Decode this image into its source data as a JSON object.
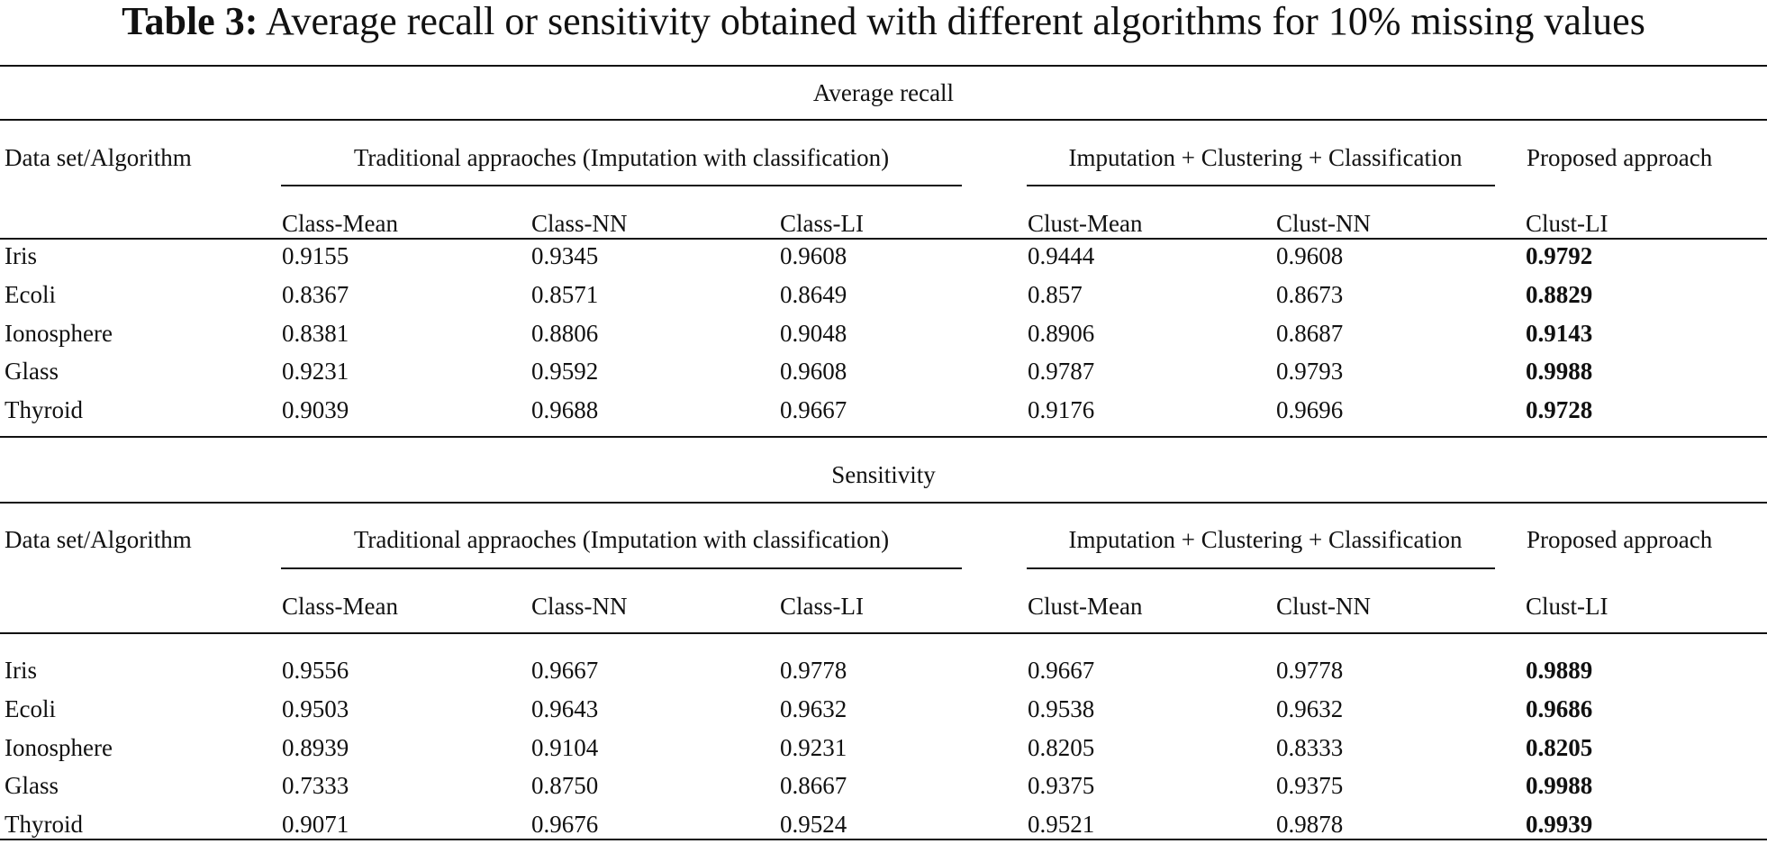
{
  "title": {
    "label": "Table 3:",
    "text": "Average recall or sensitivity obtained with different algorithms for 10% missing values"
  },
  "sections": [
    {
      "name": "Average recall",
      "header": {
        "corner": "Data set/Algorithm",
        "group_traditional": "Traditional appraoches (Imputation with classification)",
        "group_clustering": "Imputation + Clustering + Classification",
        "group_proposed": "Proposed approach"
      },
      "columns": [
        "Class-Mean",
        "Class-NN",
        "Class-LI",
        "Clust-Mean",
        "Clust-NN",
        "Clust-LI"
      ],
      "rows": [
        {
          "dataset": "Iris",
          "values": [
            "0.9155",
            "0.9345",
            "0.9608",
            "0.9444",
            "0.9608",
            "0.9792"
          ]
        },
        {
          "dataset": "Ecoli",
          "values": [
            "0.8367",
            "0.8571",
            "0.8649",
            "0.857",
            "0.8673",
            "0.8829"
          ]
        },
        {
          "dataset": "Ionosphere",
          "values": [
            "0.8381",
            "0.8806",
            "0.9048",
            "0.8906",
            "0.8687",
            "0.9143"
          ]
        },
        {
          "dataset": "Glass",
          "values": [
            "0.9231",
            "0.9592",
            "0.9608",
            "0.9787",
            "0.9793",
            "0.9988"
          ]
        },
        {
          "dataset": "Thyroid",
          "values": [
            "0.9039",
            "0.9688",
            "0.9667",
            "0.9176",
            "0.9696",
            "0.9728"
          ]
        }
      ]
    },
    {
      "name": "Sensitivity",
      "header": {
        "corner": "Data set/Algorithm",
        "group_traditional": "Traditional appraoches (Imputation with classification)",
        "group_clustering": "Imputation + Clustering + Classification",
        "group_proposed": "Proposed approach"
      },
      "columns": [
        "Class-Mean",
        "Class-NN",
        "Class-LI",
        "Clust-Mean",
        "Clust-NN",
        "Clust-LI"
      ],
      "rows": [
        {
          "dataset": "Iris",
          "values": [
            "0.9556",
            "0.9667",
            "0.9778",
            "0.9667",
            "0.9778",
            "0.9889"
          ]
        },
        {
          "dataset": "Ecoli",
          "values": [
            "0.9503",
            "0.9643",
            "0.9632",
            "0.9538",
            "0.9632",
            "0.9686"
          ]
        },
        {
          "dataset": "Ionosphere",
          "values": [
            "0.8939",
            "0.9104",
            "0.9231",
            "0.8205",
            "0.8333",
            "0.8205"
          ]
        },
        {
          "dataset": "Glass",
          "values": [
            "0.7333",
            "0.8750",
            "0.8667",
            "0.9375",
            "0.9375",
            "0.9988"
          ]
        },
        {
          "dataset": "Thyroid",
          "values": [
            "0.9071",
            "0.9676",
            "0.9524",
            "0.9521",
            "0.9878",
            "0.9939"
          ]
        }
      ]
    }
  ]
}
